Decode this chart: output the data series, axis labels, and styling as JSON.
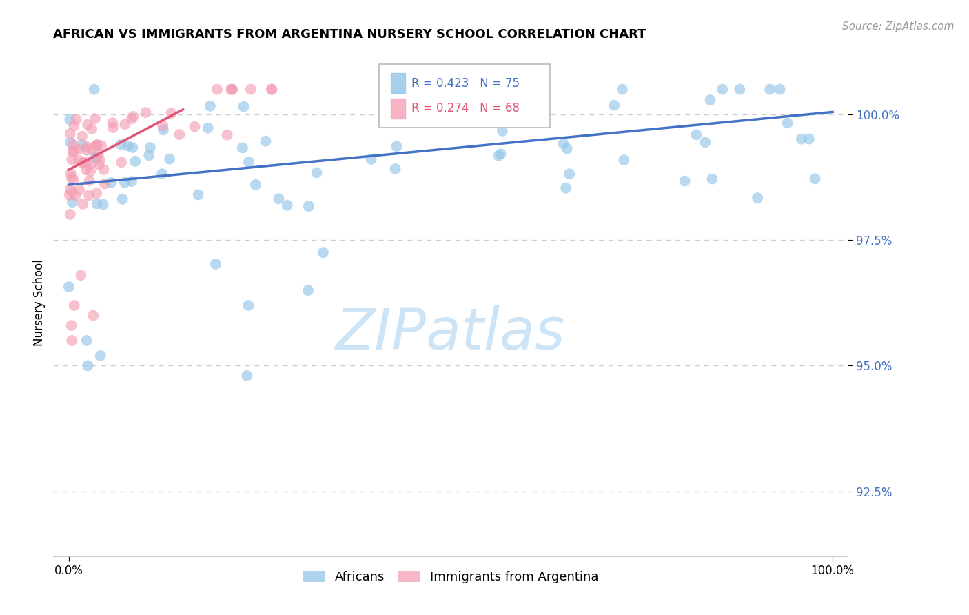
{
  "title": "AFRICAN VS IMMIGRANTS FROM ARGENTINA NURSERY SCHOOL CORRELATION CHART",
  "source": "Source: ZipAtlas.com",
  "ylabel": "Nursery School",
  "ytick_vals": [
    92.5,
    95.0,
    97.5,
    100.0
  ],
  "ytick_labels": [
    "92.5%",
    "95.0%",
    "97.5%",
    "100.0%"
  ],
  "xlim": [
    -2,
    102
  ],
  "ylim": [
    91.2,
    101.3
  ],
  "africans_R": 0.423,
  "africans_N": 75,
  "argentina_R": 0.274,
  "argentina_N": 68,
  "africans_color": "#92c5e8",
  "argentina_color": "#f4a0b5",
  "africans_line_color": "#4472c4",
  "argentina_line_color": "#e05575",
  "legend_box_color": "#cccccc",
  "grid_color": "#cccccc",
  "ytick_color": "#4472c4",
  "source_color": "#999999",
  "watermark_color": "#cce4f5",
  "title_fontsize": 13,
  "tick_fontsize": 12,
  "ylabel_fontsize": 12,
  "source_fontsize": 11,
  "legend_fontsize": 12,
  "watermark_fontsize": 60
}
